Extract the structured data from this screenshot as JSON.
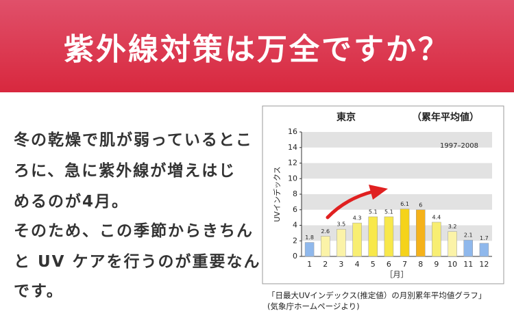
{
  "header": {
    "title": "紫外線対策は万全ですか？"
  },
  "body": {
    "lines": [
      "冬の乾燥で肌が弱っているとこ",
      "ろに、急に紫外線が増えはじ",
      "めるのが4月。",
      "そのため、この季節からきちん",
      "と UV ケアを行うのが重要なん",
      "です。"
    ]
  },
  "chart_data": {
    "type": "bar",
    "title": "東京",
    "subtitle": "（累年平均値）",
    "annotation": "1997–2008",
    "y_label": "UVインデックス",
    "x_label": "［月］",
    "categories": [
      "1",
      "2",
      "3",
      "4",
      "5",
      "6",
      "7",
      "8",
      "9",
      "10",
      "11",
      "12"
    ],
    "values": [
      1.8,
      2.6,
      3.5,
      4.3,
      5.1,
      5.1,
      6.1,
      6.0,
      4.4,
      3.2,
      2.1,
      1.7
    ],
    "colors": [
      "#8fb8ec",
      "#fbf3a8",
      "#fbf3a8",
      "#f8ee72",
      "#f8e84a",
      "#f8e84a",
      "#f5d31a",
      "#f5b21a",
      "#f8ee72",
      "#fbf3a8",
      "#8fb8ec",
      "#8fb8ec"
    ],
    "ylim": [
      0,
      16
    ],
    "yticks": [
      0,
      2,
      4,
      6,
      8,
      10,
      12,
      14,
      16
    ],
    "grid": true
  },
  "caption": {
    "lines": [
      "「日最大UVインデックス(推定値）の月別累年平均値グラフ」",
      "(気象庁ホームページより)"
    ]
  }
}
